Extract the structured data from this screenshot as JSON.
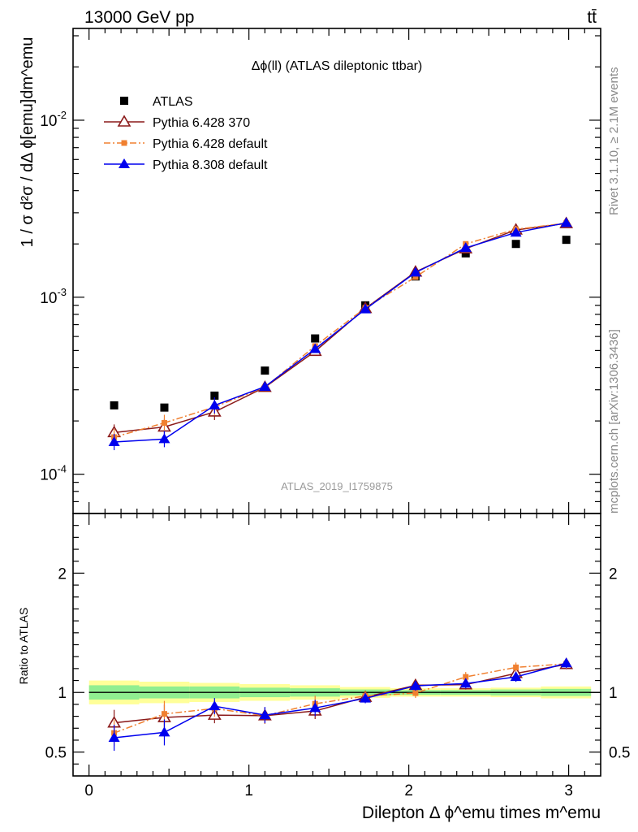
{
  "header": {
    "energy_label": "13000 GeV pp",
    "process_label": "tt̄"
  },
  "side_labels": {
    "rivet": "Rivet 3.1.10, ≥ 2.1M events",
    "mcplots": "mcplots.cern.ch [arXiv:1306.3436]"
  },
  "watermark": "ATLAS_2019_I1759875",
  "colors": {
    "atlas": "#000000",
    "p6_370": "#8b1a1a",
    "p6_default": "#f08030",
    "p8_default": "#0000ee",
    "band_inner": "#90ee90",
    "band_outer": "#ffff99"
  },
  "chart_data": [
    {
      "type": "scatter",
      "title": "Δϕ(ll) (ATLAS dileptonic ttbar)",
      "xlabel": "",
      "ylabel": "1 / σ  d²σ / dΔ ϕ[emu]dm^emu",
      "yscale": "log",
      "xlim": [
        -0.1,
        3.2
      ],
      "ylim": [
        6e-05,
        0.033
      ],
      "y_tick_labels": [
        "10^-4",
        "10^-3",
        "10^-2"
      ],
      "legend_placement": "top-left",
      "x": [
        0.157,
        0.471,
        0.785,
        1.1,
        1.414,
        1.728,
        2.042,
        2.356,
        2.67,
        2.985
      ],
      "series": [
        {
          "name": "ATLAS",
          "marker": "square",
          "values": [
            0.000245,
            0.000238,
            0.000278,
            0.000385,
            0.000585,
            0.0009,
            0.00131,
            0.00177,
            0.002,
            0.00211
          ]
        },
        {
          "name": "Pythia 6.428 370",
          "marker": "open-triangle",
          "values": [
            0.000172,
            0.000185,
            0.000225,
            0.00031,
            0.000495,
            0.000865,
            0.00139,
            0.00188,
            0.0024,
            0.00261
          ]
        },
        {
          "name": "Pythia 6.428 default",
          "marker": "small-square",
          "style": "dashdot",
          "values": [
            0.000162,
            0.000195,
            0.00024,
            0.00031,
            0.00053,
            0.00087,
            0.0013,
            0.002,
            0.00242,
            0.00262
          ]
        },
        {
          "name": "Pythia 8.308 default",
          "marker": "triangle",
          "values": [
            0.000152,
            0.000158,
            0.000245,
            0.000312,
            0.00051,
            0.000855,
            0.00138,
            0.0019,
            0.00232,
            0.00263
          ]
        }
      ]
    },
    {
      "type": "line",
      "title": "",
      "xlabel": "Dilepton Δ ϕ^emu times m^emu",
      "ylabel": "Ratio to ATLAS",
      "xlim": [
        -0.1,
        3.2
      ],
      "ylim": [
        0.3,
        2.5
      ],
      "x_tick_labels": [
        "0",
        "1",
        "2",
        "3"
      ],
      "y_tick_labels": [
        "0.5",
        "1",
        "2"
      ],
      "x": [
        0.157,
        0.471,
        0.785,
        1.1,
        1.414,
        1.728,
        2.042,
        2.356,
        2.67,
        2.985
      ],
      "band_edges": [
        0,
        0.314,
        0.628,
        0.942,
        1.256,
        1.57,
        1.884,
        2.198,
        2.512,
        2.826,
        3.14
      ],
      "band_inner_halfwidth": [
        0.06,
        0.05,
        0.05,
        0.04,
        0.035,
        0.025,
        0.02,
        0.02,
        0.025,
        0.03
      ],
      "band_outer_halfwidth": [
        0.1,
        0.09,
        0.08,
        0.07,
        0.06,
        0.045,
        0.035,
        0.035,
        0.04,
        0.05
      ],
      "series": [
        {
          "name": "Pythia 6.428 370",
          "values": [
            0.745,
            0.79,
            0.81,
            0.805,
            0.845,
            0.96,
            1.06,
            1.065,
            1.16,
            1.235
          ]
        },
        {
          "name": "Pythia 6.428 default",
          "values": [
            0.66,
            0.82,
            0.865,
            0.805,
            0.905,
            0.97,
            0.995,
            1.13,
            1.21,
            1.24
          ]
        },
        {
          "name": "Pythia 8.308 default",
          "values": [
            0.62,
            0.665,
            0.885,
            0.81,
            0.87,
            0.95,
            1.055,
            1.075,
            1.13,
            1.245
          ]
        }
      ]
    }
  ]
}
